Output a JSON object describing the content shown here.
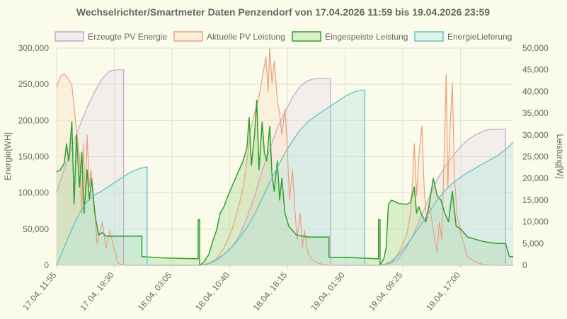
{
  "chart_data": {
    "type": "line",
    "title": "Wechselrichter/Smartmeter Daten Penzendorf von 17.04.2026 11:59 bis 19.04.2026 23:59",
    "y_left": {
      "label": "Energie[WH]",
      "min": 0,
      "max": 300000,
      "ticks": [
        0,
        50000,
        100000,
        150000,
        200000,
        250000,
        300000
      ],
      "tick_labels": [
        "0",
        "50,000",
        "100,000",
        "150,000",
        "200,000",
        "250,000",
        "300,000"
      ]
    },
    "y_right": {
      "label": "Leistung[W]",
      "min": 0,
      "max": 50000,
      "ticks": [
        0,
        5000,
        10000,
        15000,
        20000,
        25000,
        30000,
        35000,
        40000,
        45000,
        50000
      ],
      "tick_labels": [
        "0",
        "5,000",
        "10,000",
        "15,000",
        "20,000",
        "25,000",
        "30,000",
        "35,000",
        "40,000",
        "45,000",
        "50,000"
      ]
    },
    "x_axis": {
      "min_hours": 0,
      "max_hours": 60,
      "ticks_hours": [
        0,
        7.5833,
        15.1667,
        22.75,
        30.3333,
        37.9167,
        45.5,
        53.0833
      ],
      "tick_labels": [
        "17.04, 11:55",
        "17.04, 19:30",
        "18.04, 03:05",
        "18.04, 10:40",
        "18.04, 18:15",
        "19.04, 01:50",
        "19.04, 09:25",
        "19.04, 17:00"
      ]
    },
    "legend_position": "top",
    "grid": true,
    "series": [
      {
        "name": "Erzeugte PV Energie",
        "axis": "left",
        "color": "#c99fd6",
        "fill": "rgba(225,215,230,0.35)",
        "stroke_width": 1.2,
        "points": [
          [
            0,
            100000
          ],
          [
            1,
            133000
          ],
          [
            2,
            163000
          ],
          [
            3,
            192000
          ],
          [
            4,
            218000
          ],
          [
            5,
            240000
          ],
          [
            6,
            258000
          ],
          [
            7,
            268500
          ],
          [
            8,
            270000
          ],
          [
            8.8,
            270000
          ],
          [
            8.8,
            0
          ],
          [
            18.8,
            0
          ],
          [
            19.3,
            1000
          ],
          [
            20,
            3000
          ],
          [
            21,
            8000
          ],
          [
            22,
            15000
          ],
          [
            23,
            25000
          ],
          [
            24,
            40000
          ],
          [
            25,
            65000
          ],
          [
            26,
            95000
          ],
          [
            27,
            130000
          ],
          [
            28,
            160000
          ],
          [
            29,
            190000
          ],
          [
            30,
            212000
          ],
          [
            31,
            232000
          ],
          [
            32,
            247000
          ],
          [
            33,
            255000
          ],
          [
            34,
            258000
          ],
          [
            36,
            258000
          ],
          [
            36,
            0
          ],
          [
            42.3,
            0
          ],
          [
            43,
            1000
          ],
          [
            44,
            3000
          ],
          [
            45,
            10000
          ],
          [
            46,
            25000
          ],
          [
            47,
            45000
          ],
          [
            48,
            70000
          ],
          [
            49,
            95000
          ],
          [
            50,
            118000
          ],
          [
            51,
            136000
          ],
          [
            52,
            150000
          ],
          [
            53,
            163000
          ],
          [
            54,
            173000
          ],
          [
            55,
            180000
          ],
          [
            56,
            185000
          ],
          [
            57,
            188000
          ],
          [
            59,
            188000
          ],
          [
            59,
            0
          ],
          [
            60,
            0
          ]
        ]
      },
      {
        "name": "Aktuelle PV Leistung",
        "axis": "right",
        "color": "#eaa07e",
        "fill": "rgba(248,228,205,0.45)",
        "stroke_width": 1.2,
        "points": [
          [
            0,
            41000
          ],
          [
            0.5,
            43500
          ],
          [
            1,
            44000
          ],
          [
            1.5,
            43000
          ],
          [
            2,
            41500
          ],
          [
            2.5,
            33000
          ],
          [
            3,
            25000
          ],
          [
            3.3,
            12000
          ],
          [
            3.5,
            28000
          ],
          [
            3.8,
            15000
          ],
          [
            4,
            30000
          ],
          [
            4.3,
            18000
          ],
          [
            4.5,
            22000
          ],
          [
            5,
            13000
          ],
          [
            5.3,
            5000
          ],
          [
            6,
            10000
          ],
          [
            6.5,
            4000
          ],
          [
            7,
            8000
          ],
          [
            7.5,
            4000
          ],
          [
            7.8,
            2500
          ],
          [
            8,
            600
          ],
          [
            8.5,
            200
          ],
          [
            9,
            0
          ],
          [
            19,
            0
          ],
          [
            20,
            400
          ],
          [
            21,
            1500
          ],
          [
            22,
            4000
          ],
          [
            23,
            8000
          ],
          [
            23.5,
            11000
          ],
          [
            24,
            14000
          ],
          [
            24.5,
            18000
          ],
          [
            25,
            24000
          ],
          [
            25.5,
            31000
          ],
          [
            26,
            35000
          ],
          [
            26.5,
            38000
          ],
          [
            27,
            43000
          ],
          [
            27.5,
            48000
          ],
          [
            27.8,
            40000
          ],
          [
            28,
            50000
          ],
          [
            28.3,
            42000
          ],
          [
            28.6,
            47000
          ],
          [
            29,
            38000
          ],
          [
            29.3,
            35000
          ],
          [
            29.6,
            30000
          ],
          [
            30,
            36000
          ],
          [
            30.3,
            28000
          ],
          [
            30.6,
            15000
          ],
          [
            31,
            22000
          ],
          [
            31.3,
            13000
          ],
          [
            31.6,
            6000
          ],
          [
            32,
            12000
          ],
          [
            32.3,
            4000
          ],
          [
            32.6,
            8000
          ],
          [
            33,
            3000
          ],
          [
            33.5,
            1500
          ],
          [
            34,
            700
          ],
          [
            35,
            200
          ],
          [
            36,
            0
          ],
          [
            43,
            0
          ],
          [
            44,
            500
          ],
          [
            45,
            3000
          ],
          [
            46,
            7000
          ],
          [
            46.5,
            12000
          ],
          [
            46.8,
            20000
          ],
          [
            47,
            28000
          ],
          [
            47.3,
            16000
          ],
          [
            47.6,
            25000
          ],
          [
            48,
            32000
          ],
          [
            48.3,
            18000
          ],
          [
            48.6,
            10000
          ],
          [
            49,
            14000
          ],
          [
            49.5,
            8000
          ],
          [
            50,
            3000
          ],
          [
            50.3,
            10000
          ],
          [
            50.6,
            6000
          ],
          [
            51,
            30000
          ],
          [
            51.2,
            44000
          ],
          [
            51.4,
            18000
          ],
          [
            51.7,
            32000
          ],
          [
            52,
            42000
          ],
          [
            52.3,
            20000
          ],
          [
            52.6,
            12000
          ],
          [
            53,
            8000
          ],
          [
            53.5,
            5000
          ],
          [
            54,
            2000
          ],
          [
            55,
            800
          ],
          [
            56,
            200
          ],
          [
            57,
            0
          ],
          [
            60,
            0
          ]
        ]
      },
      {
        "name": "Eingespeiste Leistung",
        "axis": "right",
        "color": "#2ea02e",
        "fill": "rgba(160,215,140,0.35)",
        "stroke_width": 1.5,
        "points": [
          [
            0,
            21500
          ],
          [
            0.5,
            22000
          ],
          [
            1,
            23500
          ],
          [
            1.3,
            28000
          ],
          [
            1.6,
            24000
          ],
          [
            2,
            33000
          ],
          [
            2.3,
            14000
          ],
          [
            2.6,
            30000
          ],
          [
            3,
            18000
          ],
          [
            3.3,
            26000
          ],
          [
            3.6,
            12000
          ],
          [
            4,
            22000
          ],
          [
            4.3,
            15000
          ],
          [
            4.6,
            20000
          ],
          [
            5,
            12000
          ],
          [
            5.5,
            7000
          ],
          [
            6,
            7500
          ],
          [
            6.5,
            6700
          ],
          [
            7,
            6700
          ],
          [
            8,
            6700
          ],
          [
            8.5,
            6700
          ],
          [
            11.2,
            6700
          ],
          [
            11.2,
            2000
          ],
          [
            14,
            1700
          ],
          [
            18,
            1500
          ],
          [
            18.6,
            1500
          ],
          [
            18.6,
            10500
          ],
          [
            18.8,
            10500
          ],
          [
            18.8,
            0
          ],
          [
            19.3,
            600
          ],
          [
            20,
            2500
          ],
          [
            20.5,
            5500
          ],
          [
            21,
            8000
          ],
          [
            21.5,
            12000
          ],
          [
            22,
            13500
          ],
          [
            22.5,
            16000
          ],
          [
            23,
            18000
          ],
          [
            23.5,
            20000
          ],
          [
            24,
            22000
          ],
          [
            24.5,
            24000
          ],
          [
            25,
            27000
          ],
          [
            25.3,
            34000
          ],
          [
            25.6,
            23000
          ],
          [
            26,
            30000
          ],
          [
            26.3,
            38000
          ],
          [
            26.6,
            22000
          ],
          [
            27,
            33000
          ],
          [
            27.3,
            26000
          ],
          [
            27.6,
            24000
          ],
          [
            28,
            32000
          ],
          [
            28.3,
            21000
          ],
          [
            28.6,
            17000
          ],
          [
            29,
            24000
          ],
          [
            29.3,
            15000
          ],
          [
            29.6,
            20000
          ],
          [
            30,
            12000
          ],
          [
            30.5,
            9000
          ],
          [
            31,
            8000
          ],
          [
            31.5,
            7000
          ],
          [
            32,
            6800
          ],
          [
            33,
            6500
          ],
          [
            35,
            6500
          ],
          [
            35.8,
            6500
          ],
          [
            35.8,
            1800
          ],
          [
            38,
            1800
          ],
          [
            42,
            1500
          ],
          [
            42.3,
            1500
          ],
          [
            42.3,
            10500
          ],
          [
            42.5,
            10500
          ],
          [
            42.5,
            0
          ],
          [
            43,
            1500
          ],
          [
            43.3,
            4000
          ],
          [
            43.6,
            14000
          ],
          [
            44,
            15000
          ],
          [
            45,
            14200
          ],
          [
            46,
            14000
          ],
          [
            46.5,
            14500
          ],
          [
            47,
            18000
          ],
          [
            47.3,
            12000
          ],
          [
            47.6,
            13500
          ],
          [
            48,
            11500
          ],
          [
            48.5,
            10000
          ],
          [
            49,
            14500
          ],
          [
            49.5,
            20000
          ],
          [
            50,
            16000
          ],
          [
            50.5,
            15000
          ],
          [
            51,
            12000
          ],
          [
            51.5,
            10000
          ],
          [
            52,
            17000
          ],
          [
            52.5,
            9000
          ],
          [
            53,
            8500
          ],
          [
            54,
            6500
          ],
          [
            55,
            6000
          ],
          [
            56,
            5500
          ],
          [
            57,
            5200
          ],
          [
            58,
            5000
          ],
          [
            59,
            5000
          ],
          [
            59.5,
            2000
          ],
          [
            60,
            2000
          ]
        ]
      },
      {
        "name": "EnergieLieferung",
        "axis": "left",
        "color": "#5fc4c4",
        "fill": "rgba(185,230,225,0.4)",
        "stroke_width": 1.3,
        "points": [
          [
            0,
            0
          ],
          [
            1,
            25000
          ],
          [
            2,
            50000
          ],
          [
            3,
            72000
          ],
          [
            4,
            88000
          ],
          [
            5,
            97000
          ],
          [
            6,
            103000
          ],
          [
            7,
            110000
          ],
          [
            8,
            117000
          ],
          [
            9,
            124000
          ],
          [
            10,
            130000
          ],
          [
            11,
            134000
          ],
          [
            11.9,
            136000
          ],
          [
            11.9,
            0
          ],
          [
            19,
            0
          ],
          [
            20,
            2000
          ],
          [
            21,
            7000
          ],
          [
            22,
            15000
          ],
          [
            23,
            25000
          ],
          [
            24,
            37000
          ],
          [
            25,
            52000
          ],
          [
            26,
            70000
          ],
          [
            27,
            92000
          ],
          [
            28,
            115000
          ],
          [
            29,
            135000
          ],
          [
            30,
            155000
          ],
          [
            31,
            172000
          ],
          [
            32,
            187000
          ],
          [
            33,
            198000
          ],
          [
            34,
            206000
          ],
          [
            35,
            213000
          ],
          [
            36,
            220000
          ],
          [
            37,
            227000
          ],
          [
            38,
            234000
          ],
          [
            39,
            239000
          ],
          [
            40,
            242000
          ],
          [
            40.5,
            242000
          ],
          [
            40.5,
            0
          ],
          [
            42.3,
            0
          ],
          [
            43,
            500
          ],
          [
            44,
            6000
          ],
          [
            45,
            15000
          ],
          [
            46,
            28000
          ],
          [
            47,
            43000
          ],
          [
            48,
            58000
          ],
          [
            49,
            74000
          ],
          [
            50,
            90000
          ],
          [
            51,
            103000
          ],
          [
            52,
            113000
          ],
          [
            53,
            121000
          ],
          [
            54,
            128000
          ],
          [
            55,
            134000
          ],
          [
            56,
            140000
          ],
          [
            57,
            146000
          ],
          [
            58,
            152000
          ],
          [
            59,
            160000
          ],
          [
            60,
            170000
          ]
        ]
      }
    ]
  }
}
